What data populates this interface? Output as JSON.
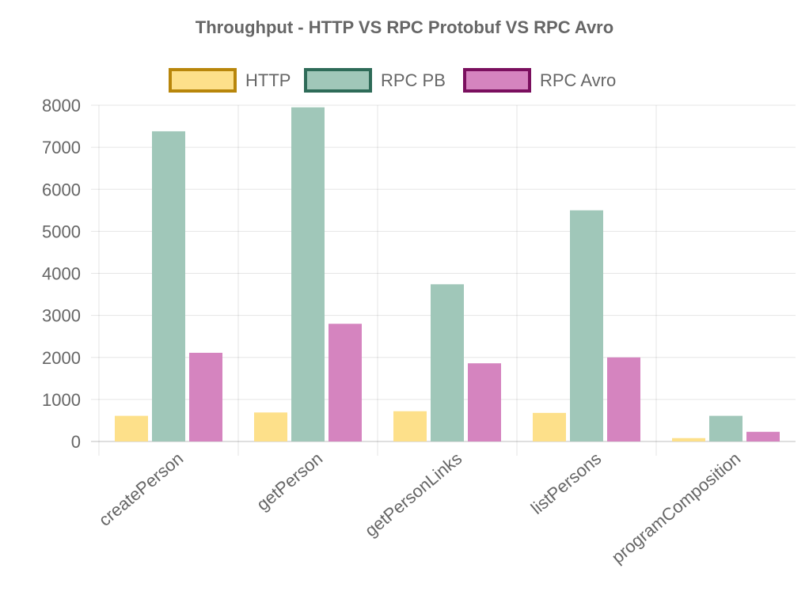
{
  "chart_data": {
    "type": "bar",
    "title": "Throughput - HTTP VS RPC Protobuf VS RPC Avro",
    "xlabel": "",
    "ylabel": "",
    "categories": [
      "createPerson",
      "getPerson",
      "getPersonLinks",
      "listPersons",
      "programComposition"
    ],
    "series": [
      {
        "name": "HTTP",
        "values": [
          610,
          690,
          720,
          680,
          80
        ],
        "fill": "#fde08a",
        "border": "#b8860b"
      },
      {
        "name": "RPC PB",
        "values": [
          7380,
          7950,
          3740,
          5500,
          610
        ],
        "fill": "#a0c7b9",
        "border": "#2e6b58"
      },
      {
        "name": "RPC Avro",
        "values": [
          2110,
          2800,
          1860,
          2000,
          230
        ],
        "fill": "#d584bf",
        "border": "#7a0f5e"
      }
    ],
    "ylim": [
      0,
      8000
    ],
    "yticks": [
      0,
      1000,
      2000,
      3000,
      4000,
      5000,
      6000,
      7000,
      8000
    ],
    "grid": true,
    "legend_position": "top"
  }
}
